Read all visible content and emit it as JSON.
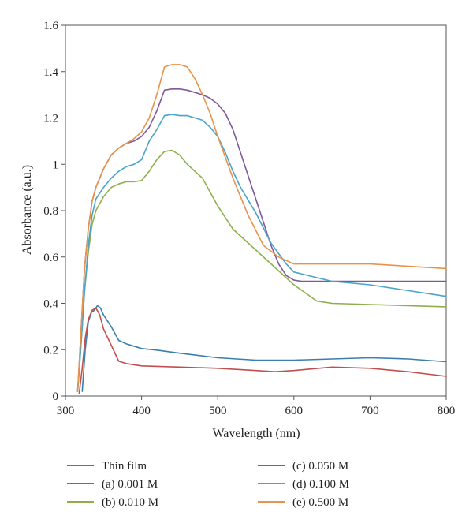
{
  "chart_data": {
    "type": "line",
    "title": "",
    "xlabel": "Wavelength (nm)",
    "ylabel": "Absorbance (a.u.)",
    "xlim": [
      300,
      800
    ],
    "ylim": [
      0,
      1.6
    ],
    "x_ticks": [
      "300",
      "400",
      "500",
      "600",
      "700",
      "800"
    ],
    "y_ticks": [
      "0",
      "0.2",
      "0.4",
      "0.6",
      "0.8",
      "1",
      "1.2",
      "1.4",
      "1.6"
    ],
    "grid": false,
    "legend_position": "bottom",
    "series": [
      {
        "name": "Thin film",
        "color": "#3a7fad",
        "x": [
          322,
          326,
          330,
          334,
          338,
          342,
          346,
          350,
          360,
          370,
          380,
          390,
          400,
          420,
          450,
          500,
          550,
          600,
          650,
          700,
          750,
          800
        ],
        "y": [
          0.02,
          0.2,
          0.32,
          0.36,
          0.37,
          0.39,
          0.38,
          0.35,
          0.3,
          0.24,
          0.225,
          0.215,
          0.205,
          0.198,
          0.185,
          0.165,
          0.155,
          0.155,
          0.16,
          0.165,
          0.16,
          0.148
        ]
      },
      {
        "name": "(a) 0.001 M",
        "color": "#c0504d",
        "x": [
          318,
          322,
          326,
          330,
          335,
          340,
          345,
          350,
          360,
          370,
          380,
          400,
          450,
          500,
          550,
          575,
          600,
          650,
          700,
          750,
          800
        ],
        "y": [
          0.01,
          0.12,
          0.25,
          0.33,
          0.37,
          0.38,
          0.35,
          0.29,
          0.22,
          0.15,
          0.14,
          0.13,
          0.125,
          0.12,
          0.11,
          0.105,
          0.11,
          0.125,
          0.12,
          0.105,
          0.085
        ]
      },
      {
        "name": "(b) 0.010 M",
        "color": "#8db04a",
        "x": [
          316,
          320,
          325,
          330,
          335,
          340,
          350,
          360,
          370,
          380,
          390,
          400,
          410,
          420,
          430,
          440,
          450,
          460,
          480,
          500,
          520,
          550,
          600,
          630,
          650,
          700,
          800
        ],
        "y": [
          0.02,
          0.2,
          0.45,
          0.62,
          0.74,
          0.8,
          0.86,
          0.9,
          0.915,
          0.925,
          0.925,
          0.93,
          0.97,
          1.02,
          1.055,
          1.06,
          1.04,
          1.0,
          0.94,
          0.82,
          0.72,
          0.63,
          0.48,
          0.41,
          0.4,
          0.395,
          0.385
        ]
      },
      {
        "name": "(c) 0.050 M",
        "color": "#7e5a9b",
        "x": [
          316,
          320,
          325,
          330,
          335,
          340,
          350,
          360,
          370,
          380,
          390,
          400,
          410,
          420,
          430,
          440,
          450,
          460,
          470,
          480,
          490,
          500,
          510,
          520,
          530,
          540,
          550,
          560,
          570,
          580,
          590,
          600,
          610,
          620,
          650,
          700,
          800
        ],
        "y": [
          0.02,
          0.25,
          0.55,
          0.72,
          0.84,
          0.9,
          0.98,
          1.04,
          1.07,
          1.09,
          1.1,
          1.12,
          1.16,
          1.23,
          1.32,
          1.325,
          1.325,
          1.32,
          1.31,
          1.3,
          1.285,
          1.26,
          1.22,
          1.15,
          1.05,
          0.95,
          0.85,
          0.75,
          0.65,
          0.57,
          0.52,
          0.5,
          0.495,
          0.495,
          0.495,
          0.495,
          0.495
        ]
      },
      {
        "name": "(d) 0.100 M",
        "color": "#4aa3c9",
        "x": [
          316,
          320,
          325,
          330,
          335,
          340,
          350,
          360,
          370,
          380,
          390,
          400,
          410,
          420,
          430,
          440,
          450,
          460,
          470,
          480,
          490,
          500,
          510,
          520,
          530,
          550,
          570,
          590,
          600,
          650,
          700,
          800
        ],
        "y": [
          0.02,
          0.2,
          0.45,
          0.65,
          0.78,
          0.85,
          0.9,
          0.94,
          0.97,
          0.99,
          1.0,
          1.02,
          1.1,
          1.15,
          1.21,
          1.215,
          1.21,
          1.21,
          1.2,
          1.19,
          1.16,
          1.12,
          1.05,
          0.97,
          0.9,
          0.79,
          0.66,
          0.57,
          0.535,
          0.495,
          0.48,
          0.43
        ]
      },
      {
        "name": "(e) 0.500 M",
        "color": "#e8934a",
        "x": [
          316,
          320,
          325,
          330,
          335,
          340,
          350,
          360,
          370,
          380,
          390,
          400,
          410,
          420,
          430,
          440,
          450,
          460,
          470,
          480,
          490,
          500,
          520,
          540,
          560,
          580,
          600,
          650,
          700,
          800
        ],
        "y": [
          0.02,
          0.25,
          0.55,
          0.72,
          0.84,
          0.9,
          0.98,
          1.04,
          1.07,
          1.09,
          1.11,
          1.14,
          1.2,
          1.3,
          1.42,
          1.43,
          1.43,
          1.42,
          1.37,
          1.3,
          1.22,
          1.12,
          0.94,
          0.78,
          0.65,
          0.6,
          0.57,
          0.57,
          0.57,
          0.55
        ]
      }
    ]
  }
}
